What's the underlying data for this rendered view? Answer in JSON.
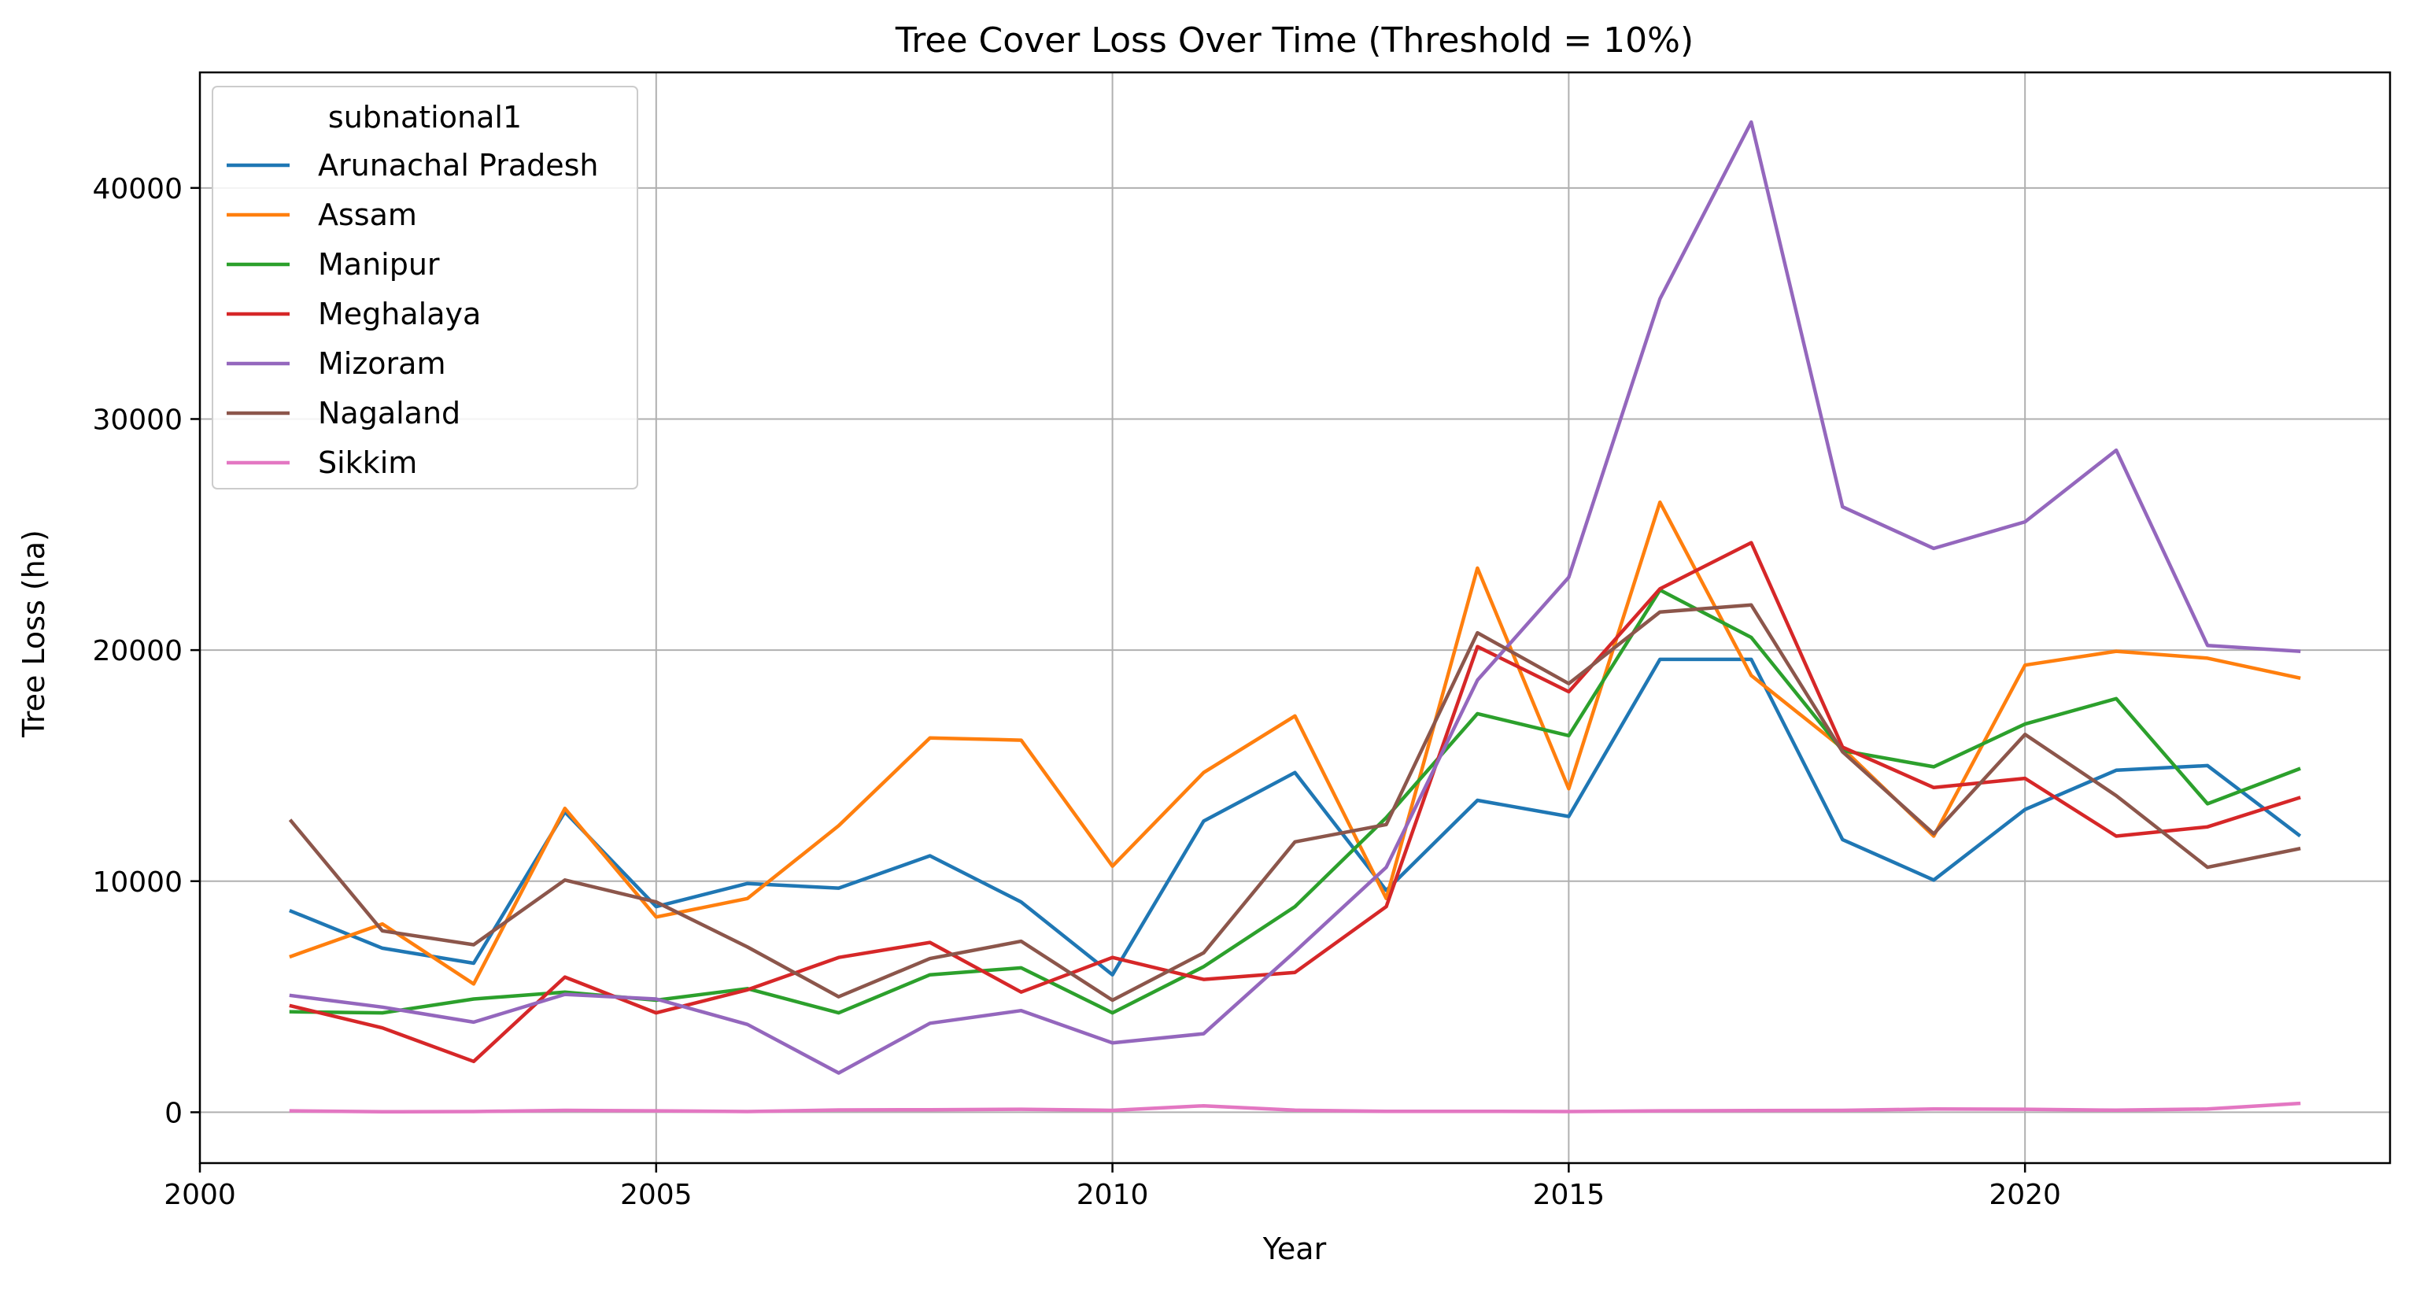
{
  "chart_data": {
    "type": "line",
    "title": "Tree Cover Loss Over Time (Threshold = 10%)",
    "xlabel": "Year",
    "ylabel": "Tree Loss (ha)",
    "xlim": [
      2000,
      2024
    ],
    "ylim": [
      -2200,
      45000
    ],
    "xticks": [
      2000,
      2005,
      2010,
      2015,
      2020
    ],
    "yticks": [
      0,
      10000,
      20000,
      30000,
      40000
    ],
    "grid": true,
    "legend": {
      "title": "subnational1",
      "placement": "top-left"
    },
    "x": [
      2001,
      2002,
      2003,
      2004,
      2005,
      2006,
      2007,
      2008,
      2009,
      2010,
      2011,
      2012,
      2013,
      2014,
      2015,
      2016,
      2017,
      2018,
      2019,
      2020,
      2021,
      2022,
      2023
    ],
    "series": [
      {
        "name": "Arunachal Pradesh",
        "color": "#1f77b4",
        "values": [
          8700,
          7100,
          6450,
          13000,
          8900,
          9900,
          9700,
          11100,
          9100,
          5950,
          12600,
          14700,
          9600,
          13500,
          12800,
          19600,
          19600,
          11800,
          10050,
          13100,
          14800,
          15000,
          12000
        ]
      },
      {
        "name": "Assam",
        "color": "#ff7f0e",
        "values": [
          6750,
          8150,
          5550,
          13150,
          8450,
          9250,
          12400,
          16200,
          16100,
          10650,
          14700,
          17150,
          9250,
          23550,
          14000,
          26400,
          18900,
          15750,
          11950,
          19350,
          19950,
          19650,
          18800
        ]
      },
      {
        "name": "Manipur",
        "color": "#2ca02c",
        "values": [
          4350,
          4300,
          4900,
          5200,
          4850,
          5350,
          4300,
          5950,
          6250,
          4300,
          6300,
          8900,
          12750,
          17250,
          16300,
          22600,
          20550,
          15650,
          14950,
          16800,
          17900,
          13350,
          14850
        ]
      },
      {
        "name": "Meghalaya",
        "color": "#d62728",
        "values": [
          4600,
          3650,
          2200,
          5850,
          4300,
          5300,
          6700,
          7350,
          5200,
          6700,
          5750,
          6050,
          8900,
          20150,
          18200,
          22650,
          24650,
          15800,
          14050,
          14450,
          11950,
          12350,
          13600
        ]
      },
      {
        "name": "Mizoram",
        "color": "#9467bd",
        "values": [
          5050,
          4550,
          3900,
          5100,
          4900,
          3800,
          1700,
          3850,
          4400,
          3000,
          3400,
          6950,
          10600,
          18700,
          23150,
          35200,
          42850,
          26200,
          24400,
          25550,
          28650,
          20200,
          19950
        ]
      },
      {
        "name": "Nagaland",
        "color": "#8c564b",
        "values": [
          12600,
          7850,
          7250,
          10050,
          9100,
          7150,
          5000,
          6650,
          7400,
          4850,
          6900,
          11700,
          12450,
          20750,
          18550,
          21650,
          21950,
          15600,
          12050,
          16350,
          13700,
          10600,
          11400
        ]
      },
      {
        "name": "Sikkim",
        "color": "#e377c2",
        "values": [
          60,
          20,
          30,
          80,
          60,
          30,
          100,
          110,
          130,
          80,
          280,
          90,
          40,
          40,
          30,
          60,
          70,
          80,
          140,
          130,
          90,
          140,
          380
        ]
      }
    ]
  }
}
